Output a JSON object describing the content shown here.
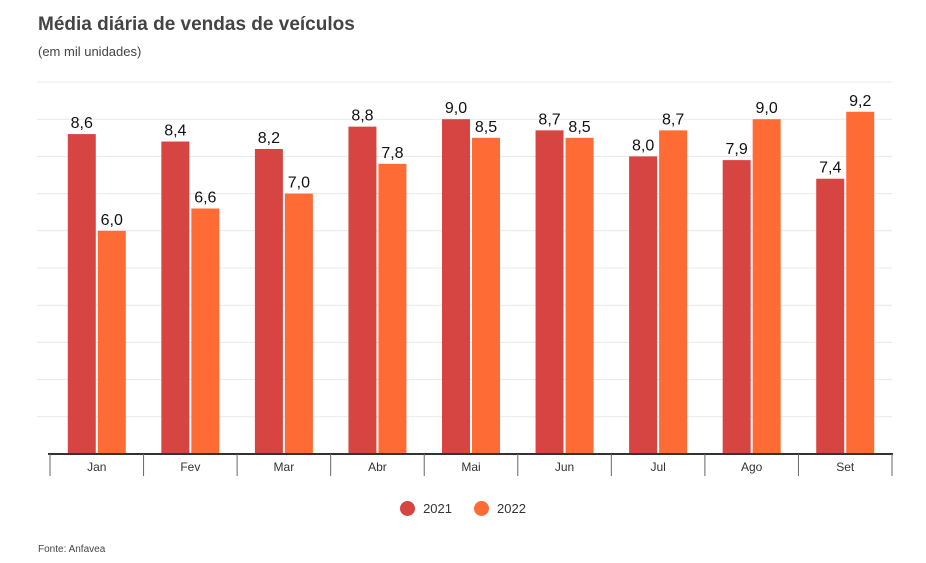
{
  "chart": {
    "title": "Média diária de vendas de veículos",
    "subtitle": "(em mil unidades)",
    "source": "Fonte: Anfavea"
  },
  "colors": {
    "s2021": "#D64541",
    "s2022": "#FF6B35",
    "grid": "#E8E8E8",
    "axis": "#333333"
  },
  "chart_data": {
    "type": "bar",
    "categories": [
      "Jan",
      "Fev",
      "Mar",
      "Abr",
      "Mai",
      "Jun",
      "Jul",
      "Ago",
      "Set"
    ],
    "series": [
      {
        "name": "2021",
        "values": [
          8.6,
          8.4,
          8.2,
          8.8,
          9.0,
          8.7,
          8.0,
          7.9,
          7.4
        ],
        "labels": [
          "8,6",
          "8,4",
          "8,2",
          "8,8",
          "9,0",
          "8,7",
          "8,0",
          "7,9",
          "7,4"
        ]
      },
      {
        "name": "2022",
        "values": [
          6.0,
          6.6,
          7.0,
          7.8,
          8.5,
          8.5,
          8.7,
          9.0,
          9.2
        ],
        "labels": [
          "6,0",
          "6,6",
          "7,0",
          "7,8",
          "8,5",
          "8,5",
          "8,7",
          "9,0",
          "9,2"
        ]
      }
    ],
    "ylim": [
      0,
      10
    ],
    "grid": true,
    "legend": "bottom-center"
  }
}
